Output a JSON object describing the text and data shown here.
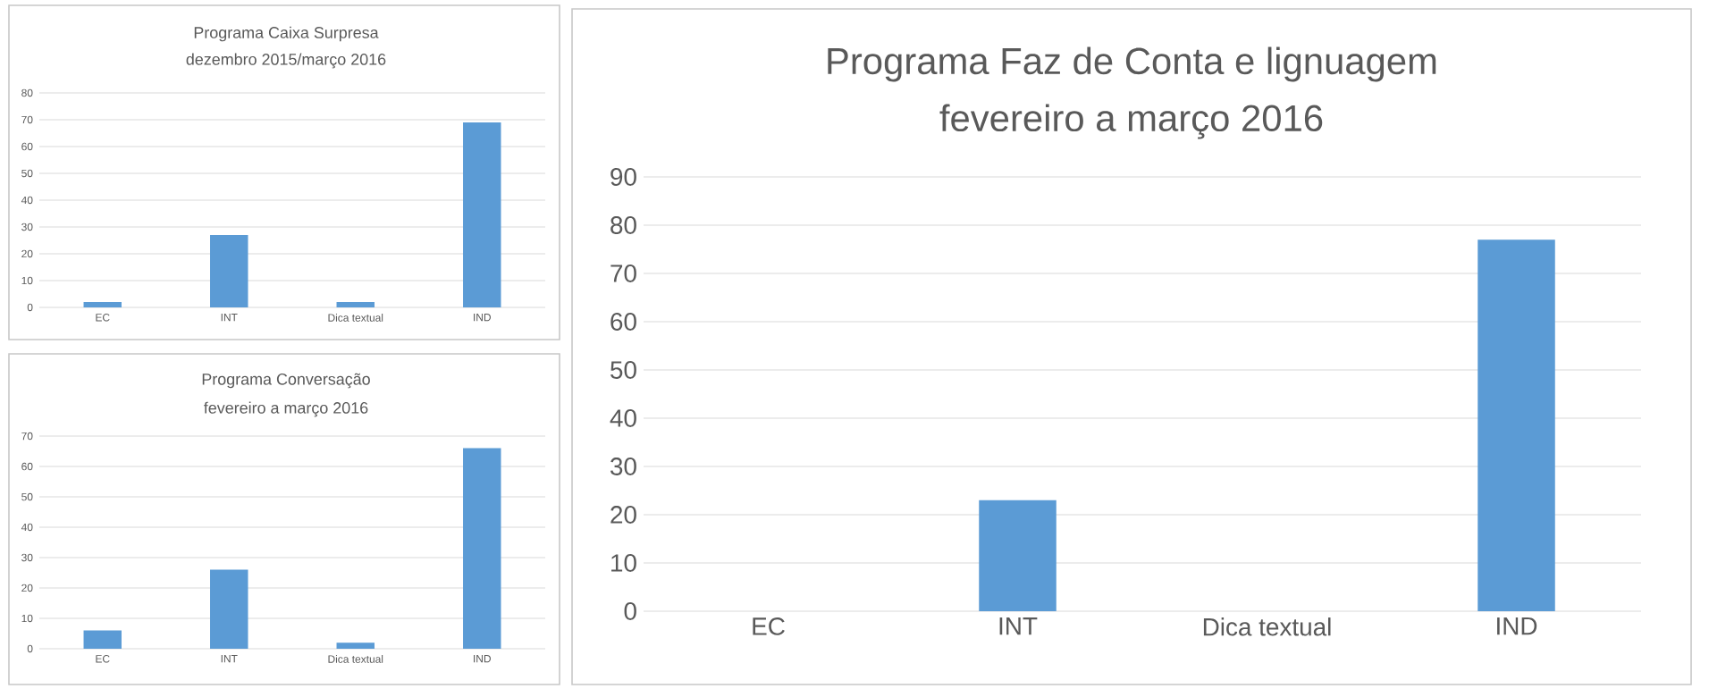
{
  "chart_data": [
    {
      "type": "bar",
      "title": "Programa Caixa Surpresa",
      "subtitle": "dezembro 2015/março 2016",
      "categories": [
        "EC",
        "INT",
        "Dica textual",
        "IND"
      ],
      "values": [
        2,
        27,
        2,
        69
      ],
      "color": "#5b9bd5",
      "ylim": [
        0,
        80
      ],
      "yticks": [
        0,
        10,
        20,
        30,
        40,
        50,
        60,
        70,
        80
      ],
      "grid": "y"
    },
    {
      "type": "bar",
      "title": "Programa Conversação",
      "subtitle": "fevereiro a março 2016",
      "categories": [
        "EC",
        "INT",
        "Dica textual",
        "IND"
      ],
      "values": [
        6,
        26,
        2,
        66
      ],
      "color": "#5b9bd5",
      "ylim": [
        0,
        70
      ],
      "yticks": [
        0,
        10,
        20,
        30,
        40,
        50,
        60,
        70
      ],
      "grid": "y"
    },
    {
      "type": "bar",
      "title": "Programa Faz de Conta e lignuagem",
      "subtitle": "fevereiro a março 2016",
      "categories": [
        "EC",
        "INT",
        "Dica textual",
        "IND"
      ],
      "values": [
        0,
        23,
        0,
        77
      ],
      "color": "#5b9bd5",
      "ylim": [
        0,
        90
      ],
      "yticks": [
        0,
        10,
        20,
        30,
        40,
        50,
        60,
        70,
        80,
        90
      ],
      "grid": "y"
    }
  ]
}
